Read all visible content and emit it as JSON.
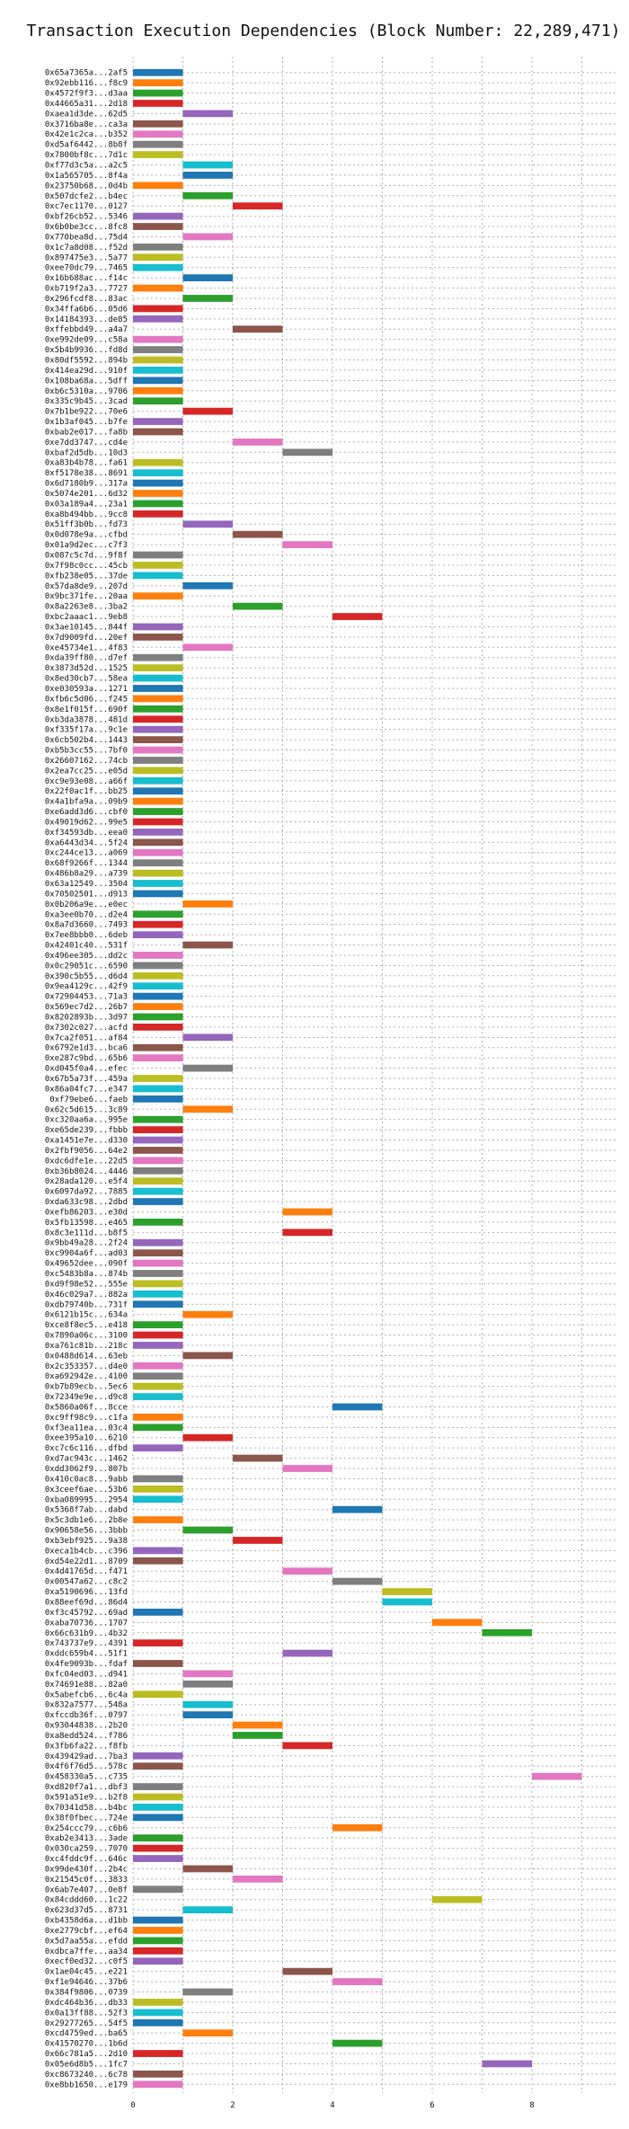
{
  "chart_data": {
    "type": "bar",
    "orientation": "horizontal-gantt",
    "title": "Transaction Execution Dependencies (Block Number: 22,289,471)",
    "xlabel": "",
    "ylabel": "",
    "xlim": [
      0,
      9
    ],
    "xticks": [
      0,
      2,
      4,
      6,
      8
    ],
    "grid": true,
    "palette": [
      "#1f77b4",
      "#ff7f0e",
      "#2ca02c",
      "#d62728",
      "#9467bd",
      "#8c564b",
      "#e377c2",
      "#7f7f7f",
      "#bcbd22",
      "#17becf"
    ],
    "transactions": [
      {
        "label": "0x65a7365a...2af5",
        "start": 0,
        "end": 1
      },
      {
        "label": "0x92ebb116...f8c9",
        "start": 0,
        "end": 1
      },
      {
        "label": "0x4572f9f3...d3aa",
        "start": 0,
        "end": 1
      },
      {
        "label": "0x44665a31...2d18",
        "start": 0,
        "end": 1
      },
      {
        "label": "0xaea1d3de...62d5",
        "start": 1,
        "end": 2
      },
      {
        "label": "0x3716ba8e...ca3a",
        "start": 0,
        "end": 1
      },
      {
        "label": "0x42e1c2ca...b352",
        "start": 0,
        "end": 1
      },
      {
        "label": "0xd5af6442...8b8f",
        "start": 0,
        "end": 1
      },
      {
        "label": "0x7800bf8c...7d1c",
        "start": 0,
        "end": 1
      },
      {
        "label": "0xf77d3c5a...a2c5",
        "start": 1,
        "end": 2
      },
      {
        "label": "0x1a565705...8f4a",
        "start": 1,
        "end": 2
      },
      {
        "label": "0x23750b68...0d4b",
        "start": 0,
        "end": 1
      },
      {
        "label": "0x507dcfe2...b4ec",
        "start": 1,
        "end": 2
      },
      {
        "label": "0xc7ec1170...0127",
        "start": 2,
        "end": 3
      },
      {
        "label": "0xbf26cb52...5346",
        "start": 0,
        "end": 1
      },
      {
        "label": "0x6b0be3cc...8fc8",
        "start": 0,
        "end": 1
      },
      {
        "label": "0x770bea8d...75d4",
        "start": 1,
        "end": 2
      },
      {
        "label": "0x1c7a8d08...f52d",
        "start": 0,
        "end": 1
      },
      {
        "label": "0x897475e3...5a77",
        "start": 0,
        "end": 1
      },
      {
        "label": "0xee70dc79...7465",
        "start": 0,
        "end": 1
      },
      {
        "label": "0x16b688ac...f14c",
        "start": 1,
        "end": 2
      },
      {
        "label": "0xb719f2a3...7727",
        "start": 0,
        "end": 1
      },
      {
        "label": "0x296fcdf8...83ac",
        "start": 1,
        "end": 2
      },
      {
        "label": "0x34ffa6b6...05d6",
        "start": 0,
        "end": 1
      },
      {
        "label": "0x14184393...de85",
        "start": 0,
        "end": 1
      },
      {
        "label": "0xffebbd49...a4a7",
        "start": 2,
        "end": 3
      },
      {
        "label": "0xe992de09...c58a",
        "start": 0,
        "end": 1
      },
      {
        "label": "0x5b4b9936...fd8d",
        "start": 0,
        "end": 1
      },
      {
        "label": "0x80df5592...894b",
        "start": 0,
        "end": 1
      },
      {
        "label": "0x414ea29d...910f",
        "start": 0,
        "end": 1
      },
      {
        "label": "0x108ba68a...5dff",
        "start": 0,
        "end": 1
      },
      {
        "label": "0xb6c5310a...9706",
        "start": 0,
        "end": 1
      },
      {
        "label": "0x335c9b45...3cad",
        "start": 0,
        "end": 1
      },
      {
        "label": "0x7b1be922...70e6",
        "start": 1,
        "end": 2
      },
      {
        "label": "0x1b3af045...b7fe",
        "start": 0,
        "end": 1
      },
      {
        "label": "0xbab2e017...fa8b",
        "start": 0,
        "end": 1
      },
      {
        "label": "0xe7dd3747...cd4e",
        "start": 2,
        "end": 3
      },
      {
        "label": "0xbaf2d5db...10d3",
        "start": 3,
        "end": 4
      },
      {
        "label": "0xa83b4b78...fa61",
        "start": 0,
        "end": 1
      },
      {
        "label": "0xf5178e38...8691",
        "start": 0,
        "end": 1
      },
      {
        "label": "0x6d7180b9...317a",
        "start": 0,
        "end": 1
      },
      {
        "label": "0x5074e201...6d32",
        "start": 0,
        "end": 1
      },
      {
        "label": "0x03a189a4...23a1",
        "start": 0,
        "end": 1
      },
      {
        "label": "0xa8b494bb...9cc8",
        "start": 0,
        "end": 1
      },
      {
        "label": "0x51ff3b0b...fd73",
        "start": 1,
        "end": 2
      },
      {
        "label": "0x0d078e9a...cfbd",
        "start": 2,
        "end": 3
      },
      {
        "label": "0x01a9d2ec...c7f3",
        "start": 3,
        "end": 4
      },
      {
        "label": "0x087c5c7d...9f8f",
        "start": 0,
        "end": 1
      },
      {
        "label": "0x7f98c0cc...45cb",
        "start": 0,
        "end": 1
      },
      {
        "label": "0xfb238e05...37de",
        "start": 0,
        "end": 1
      },
      {
        "label": "0x57da8de9...207d",
        "start": 1,
        "end": 2
      },
      {
        "label": "0x9bc371fe...20aa",
        "start": 0,
        "end": 1
      },
      {
        "label": "0x8a2263e8...3ba2",
        "start": 2,
        "end": 3
      },
      {
        "label": "0xbc2aaac1...9eb8",
        "start": 4,
        "end": 5
      },
      {
        "label": "0x3ae10145...844f",
        "start": 0,
        "end": 1
      },
      {
        "label": "0x7d9009fd...20ef",
        "start": 0,
        "end": 1
      },
      {
        "label": "0xe45734e1...4f83",
        "start": 1,
        "end": 2
      },
      {
        "label": "0xda39ff80...d7ef",
        "start": 0,
        "end": 1
      },
      {
        "label": "0x3873d52d...1525",
        "start": 0,
        "end": 1
      },
      {
        "label": "0x8ed30cb7...58ea",
        "start": 0,
        "end": 1
      },
      {
        "label": "0xe030593a...1271",
        "start": 0,
        "end": 1
      },
      {
        "label": "0xfb6c5d06...f245",
        "start": 0,
        "end": 1
      },
      {
        "label": "0x8e1f015f...690f",
        "start": 0,
        "end": 1
      },
      {
        "label": "0xb3da3878...481d",
        "start": 0,
        "end": 1
      },
      {
        "label": "0xf335f17a...9c1e",
        "start": 0,
        "end": 1
      },
      {
        "label": "0x6cb502b4...1443",
        "start": 0,
        "end": 1
      },
      {
        "label": "0xb5b3cc55...7bf0",
        "start": 0,
        "end": 1
      },
      {
        "label": "0x26607162...74cb",
        "start": 0,
        "end": 1
      },
      {
        "label": "0x2ea7cc25...e05d",
        "start": 0,
        "end": 1
      },
      {
        "label": "0xc9e93e08...a66f",
        "start": 0,
        "end": 1
      },
      {
        "label": "0x22f0ac1f...bb25",
        "start": 0,
        "end": 1
      },
      {
        "label": "0x4a1bfa9a...09b9",
        "start": 0,
        "end": 1
      },
      {
        "label": "0xe6add3d6...cbf0",
        "start": 0,
        "end": 1
      },
      {
        "label": "0x49019d62...99e5",
        "start": 0,
        "end": 1
      },
      {
        "label": "0xf34593db...eea0",
        "start": 0,
        "end": 1
      },
      {
        "label": "0xa6443d34...5f24",
        "start": 0,
        "end": 1
      },
      {
        "label": "0xc244ce13...a069",
        "start": 0,
        "end": 1
      },
      {
        "label": "0x68f9266f...1344",
        "start": 0,
        "end": 1
      },
      {
        "label": "0x486b8a29...a739",
        "start": 0,
        "end": 1
      },
      {
        "label": "0x63a12549...3504",
        "start": 0,
        "end": 1
      },
      {
        "label": "0x70502501...d913",
        "start": 0,
        "end": 1
      },
      {
        "label": "0x0b206a9e...e0ec",
        "start": 1,
        "end": 2
      },
      {
        "label": "0xa3ee0b70...d2e4",
        "start": 0,
        "end": 1
      },
      {
        "label": "0x8a7d3660...7493",
        "start": 0,
        "end": 1
      },
      {
        "label": "0x7ee8bbb0...6deb",
        "start": 0,
        "end": 1
      },
      {
        "label": "0x42401c40...531f",
        "start": 1,
        "end": 2
      },
      {
        "label": "0x496ee305...dd2c",
        "start": 0,
        "end": 1
      },
      {
        "label": "0x0c29051c...6590",
        "start": 0,
        "end": 1
      },
      {
        "label": "0x390c5b55...d6d4",
        "start": 0,
        "end": 1
      },
      {
        "label": "0x9ea4129c...42f9",
        "start": 0,
        "end": 1
      },
      {
        "label": "0x72904453...71a3",
        "start": 0,
        "end": 1
      },
      {
        "label": "0x569ec7d2...26b7",
        "start": 0,
        "end": 1
      },
      {
        "label": "0x8202893b...3d97",
        "start": 0,
        "end": 1
      },
      {
        "label": "0x7302c027...acfd",
        "start": 0,
        "end": 1
      },
      {
        "label": "0x7ca2f051...af84",
        "start": 1,
        "end": 2
      },
      {
        "label": "0x6792e1d3...bca6",
        "start": 0,
        "end": 1
      },
      {
        "label": "0xe287c9bd...65b6",
        "start": 0,
        "end": 1
      },
      {
        "label": "0xd045f0a4...efec",
        "start": 1,
        "end": 2
      },
      {
        "label": "0x67b5a73f...459a",
        "start": 0,
        "end": 1
      },
      {
        "label": "0x86a04fc7...e347",
        "start": 0,
        "end": 1
      },
      {
        "label": "0xf79ebe6...faeb",
        "start": 0,
        "end": 1
      },
      {
        "label": "0x62c5d615...3c89",
        "start": 1,
        "end": 2
      },
      {
        "label": "0xc320aa6a...995e",
        "start": 0,
        "end": 1
      },
      {
        "label": "0xe65de239...fbbb",
        "start": 0,
        "end": 1
      },
      {
        "label": "0xa1451e7e...d330",
        "start": 0,
        "end": 1
      },
      {
        "label": "0x2fbf9056...64e2",
        "start": 0,
        "end": 1
      },
      {
        "label": "0xdc6dfe1e...22d5",
        "start": 0,
        "end": 1
      },
      {
        "label": "0xb36b8024...4446",
        "start": 0,
        "end": 1
      },
      {
        "label": "0x28ada120...e5f4",
        "start": 0,
        "end": 1
      },
      {
        "label": "0x6097da92...7885",
        "start": 0,
        "end": 1
      },
      {
        "label": "0xda633c98...2dbd",
        "start": 0,
        "end": 1
      },
      {
        "label": "0xefb86203...e30d",
        "start": 3,
        "end": 4
      },
      {
        "label": "0x5fb13598...e465",
        "start": 0,
        "end": 1
      },
      {
        "label": "0x8c3e111d...b8f5",
        "start": 3,
        "end": 4
      },
      {
        "label": "0x9bb49a28...2f24",
        "start": 0,
        "end": 1
      },
      {
        "label": "0xc9904a6f...ad03",
        "start": 0,
        "end": 1
      },
      {
        "label": "0x49652dee...090f",
        "start": 0,
        "end": 1
      },
      {
        "label": "0xc5483b8a...874b",
        "start": 0,
        "end": 1
      },
      {
        "label": "0xd9f98e52...555e",
        "start": 0,
        "end": 1
      },
      {
        "label": "0x46c029a7...882a",
        "start": 0,
        "end": 1
      },
      {
        "label": "0xdb79740b...731f",
        "start": 0,
        "end": 1
      },
      {
        "label": "0x6121b15c...634a",
        "start": 1,
        "end": 2
      },
      {
        "label": "0xce8f8ec5...e418",
        "start": 0,
        "end": 1
      },
      {
        "label": "0x7890a06c...3100",
        "start": 0,
        "end": 1
      },
      {
        "label": "0xa761c81b...218c",
        "start": 0,
        "end": 1
      },
      {
        "label": "0x0488d614...63eb",
        "start": 1,
        "end": 2
      },
      {
        "label": "0x2c353357...d4e0",
        "start": 0,
        "end": 1
      },
      {
        "label": "0xa692942e...4100",
        "start": 0,
        "end": 1
      },
      {
        "label": "0xb7b89ecb...5ec6",
        "start": 0,
        "end": 1
      },
      {
        "label": "0x72349e9e...d9c8",
        "start": 0,
        "end": 1
      },
      {
        "label": "0x5860a06f...8cce",
        "start": 4,
        "end": 5
      },
      {
        "label": "0xc9ff98c9...c1fa",
        "start": 0,
        "end": 1
      },
      {
        "label": "0xf3ea11ea...03c4",
        "start": 0,
        "end": 1
      },
      {
        "label": "0xee395a10...6210",
        "start": 1,
        "end": 2
      },
      {
        "label": "0xc7c6c116...dfbd",
        "start": 0,
        "end": 1
      },
      {
        "label": "0xd7ac943c...1462",
        "start": 2,
        "end": 3
      },
      {
        "label": "0xdd3062f9...807b",
        "start": 3,
        "end": 4
      },
      {
        "label": "0x410c0ac8...9abb",
        "start": 0,
        "end": 1
      },
      {
        "label": "0x3ceef6ae...53b6",
        "start": 0,
        "end": 1
      },
      {
        "label": "0xba089995...2954",
        "start": 0,
        "end": 1
      },
      {
        "label": "0x5368f7ab...dabd",
        "start": 4,
        "end": 5
      },
      {
        "label": "0x5c3db1e6...2b8e",
        "start": 0,
        "end": 1
      },
      {
        "label": "0x90658e56...3bbb",
        "start": 1,
        "end": 2
      },
      {
        "label": "0xb3ebf925...9a38",
        "start": 2,
        "end": 3
      },
      {
        "label": "0xeca1b4cb...c396",
        "start": 0,
        "end": 1
      },
      {
        "label": "0xd54e22d1...8709",
        "start": 0,
        "end": 1
      },
      {
        "label": "0x4d41765d...f471",
        "start": 3,
        "end": 4
      },
      {
        "label": "0x00547a62...c8c2",
        "start": 4,
        "end": 5
      },
      {
        "label": "0xa5190696...13fd",
        "start": 5,
        "end": 6
      },
      {
        "label": "0x88eef69d...86d4",
        "start": 5,
        "end": 6
      },
      {
        "label": "0xf3c45792...69ad",
        "start": 0,
        "end": 1
      },
      {
        "label": "0xaba70736...1707",
        "start": 6,
        "end": 7
      },
      {
        "label": "0x66c631b9...4b32",
        "start": 7,
        "end": 8
      },
      {
        "label": "0x743737e9...4391",
        "start": 0,
        "end": 1
      },
      {
        "label": "0xddc659b4...51f1",
        "start": 3,
        "end": 4
      },
      {
        "label": "0x4fe9093b...fdaf",
        "start": 0,
        "end": 1
      },
      {
        "label": "0xfc04ed03...d941",
        "start": 1,
        "end": 2
      },
      {
        "label": "0x74691e88...82a0",
        "start": 1,
        "end": 2
      },
      {
        "label": "0x5abefcb6...6c4a",
        "start": 0,
        "end": 1
      },
      {
        "label": "0x832a7577...548a",
        "start": 1,
        "end": 2
      },
      {
        "label": "0xfccdb36f...0797",
        "start": 1,
        "end": 2
      },
      {
        "label": "0x93044838...2b20",
        "start": 2,
        "end": 3
      },
      {
        "label": "0xa8edd524...f786",
        "start": 2,
        "end": 3
      },
      {
        "label": "0x3fb6fa22...f8fb",
        "start": 3,
        "end": 4
      },
      {
        "label": "0x439429ad...7ba3",
        "start": 0,
        "end": 1
      },
      {
        "label": "0x4f6f76d5...578c",
        "start": 0,
        "end": 1
      },
      {
        "label": "0x458330a5...c735",
        "start": 8,
        "end": 9
      },
      {
        "label": "0xd820f7a1...dbf3",
        "start": 0,
        "end": 1
      },
      {
        "label": "0x591a51e9...b2f8",
        "start": 0,
        "end": 1
      },
      {
        "label": "0x70341d58...b4bc",
        "start": 0,
        "end": 1
      },
      {
        "label": "0x38f0fbec...724e",
        "start": 0,
        "end": 1
      },
      {
        "label": "0x254ccc79...c6b6",
        "start": 4,
        "end": 5
      },
      {
        "label": "0xab2e3413...3ade",
        "start": 0,
        "end": 1
      },
      {
        "label": "0x030ca259...7070",
        "start": 0,
        "end": 1
      },
      {
        "label": "0xc4fddc9f...646c",
        "start": 0,
        "end": 1
      },
      {
        "label": "0x99de430f...2b4c",
        "start": 1,
        "end": 2
      },
      {
        "label": "0x21545c0f...3833",
        "start": 2,
        "end": 3
      },
      {
        "label": "0x6ab7e407...0e8f",
        "start": 0,
        "end": 1
      },
      {
        "label": "0x84cddd60...1c22",
        "start": 6,
        "end": 7
      },
      {
        "label": "0x623d37d5...8731",
        "start": 1,
        "end": 2
      },
      {
        "label": "0xb4358d6a...d1bb",
        "start": 0,
        "end": 1
      },
      {
        "label": "0xe2779cbf...ef64",
        "start": 0,
        "end": 1
      },
      {
        "label": "0x5d7aa55a...efdd",
        "start": 0,
        "end": 1
      },
      {
        "label": "0xdbca7ffe...aa34",
        "start": 0,
        "end": 1
      },
      {
        "label": "0xecf0ed32...c0f5",
        "start": 0,
        "end": 1
      },
      {
        "label": "0x1ae04c45...e221",
        "start": 3,
        "end": 4
      },
      {
        "label": "0xf1e94646...37b6",
        "start": 4,
        "end": 5
      },
      {
        "label": "0x384f9806...0739",
        "start": 1,
        "end": 2
      },
      {
        "label": "0xdc464b36...db33",
        "start": 0,
        "end": 1
      },
      {
        "label": "0x0a13ff88...52f3",
        "start": 0,
        "end": 1
      },
      {
        "label": "0x29277265...54f5",
        "start": 0,
        "end": 1
      },
      {
        "label": "0xcd4759ed...ba65",
        "start": 1,
        "end": 2
      },
      {
        "label": "0x41570270...1b6d",
        "start": 4,
        "end": 5
      },
      {
        "label": "0x66c781a5...2d10",
        "start": 0,
        "end": 1
      },
      {
        "label": "0x05e6d8b5...1fc7",
        "start": 7,
        "end": 8
      },
      {
        "label": "0xc8673240...6c78",
        "start": 0,
        "end": 1
      },
      {
        "label": "0xe8bb1650...e179",
        "start": 0,
        "end": 1
      }
    ]
  }
}
